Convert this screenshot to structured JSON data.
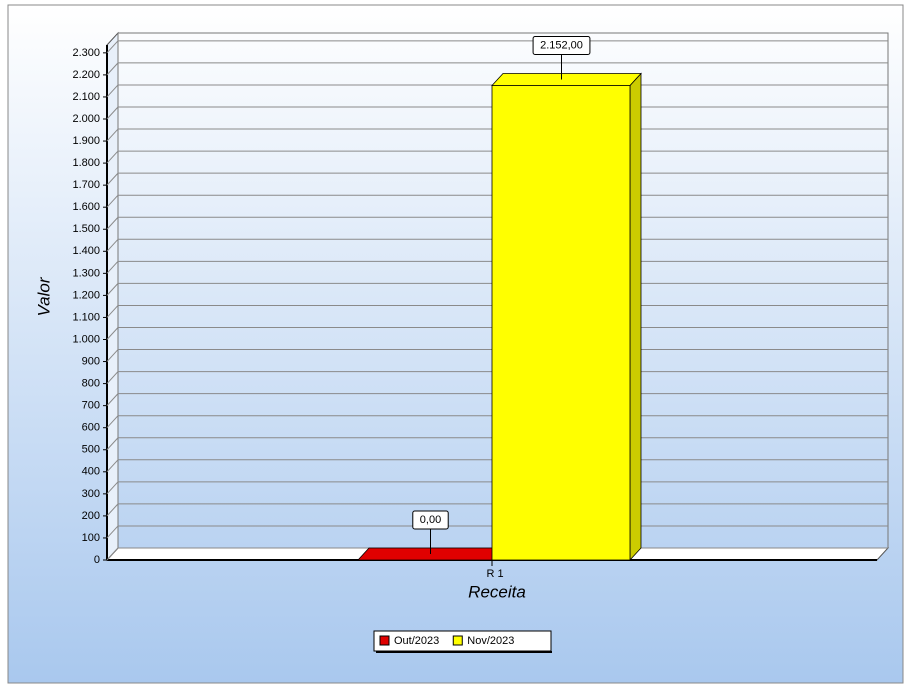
{
  "chart_data": {
    "type": "bar",
    "x_label": "Receita",
    "y_label": "Valor",
    "categories": [
      "R 1"
    ],
    "series": [
      {
        "name": "Out/2023",
        "color": "#e00000",
        "values": [
          0
        ],
        "value_labels": [
          "0,00"
        ]
      },
      {
        "name": "Nov/2023",
        "color": "#ffff00",
        "values": [
          2152
        ],
        "value_labels": [
          "2.152,00"
        ]
      }
    ],
    "ylim": [
      0,
      2390
    ],
    "yticks": [
      0,
      100,
      200,
      300,
      400,
      500,
      600,
      700,
      800,
      900,
      {
        "value": 1000,
        "label": "1.000"
      },
      {
        "value": 1100,
        "label": "1.100"
      },
      {
        "value": 1200,
        "label": "1.200"
      },
      {
        "value": 1300,
        "label": "1.300"
      },
      {
        "value": 1400,
        "label": "1.400"
      },
      {
        "value": 1500,
        "label": "1.500"
      },
      {
        "value": 1600,
        "label": "1.600"
      },
      {
        "value": 1700,
        "label": "1.700"
      },
      {
        "value": 1800,
        "label": "1.800"
      },
      {
        "value": 1900,
        "label": "1.900"
      },
      {
        "value": 2000,
        "label": "2.000"
      },
      {
        "value": 2100,
        "label": "2.100"
      },
      {
        "value": 2200,
        "label": "2.200"
      },
      {
        "value": 2300,
        "label": "2.300"
      }
    ],
    "grid": true,
    "legend": "bottom"
  }
}
